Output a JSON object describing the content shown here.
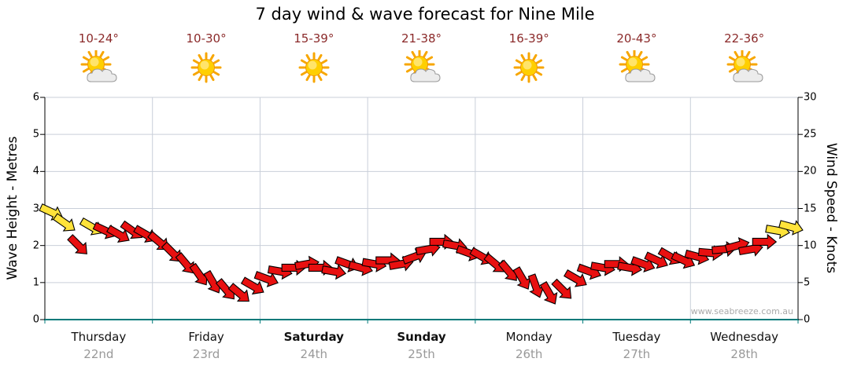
{
  "title": "7 day wind & wave forecast for Nine Mile",
  "watermark": "www.seabreeze.com.au",
  "colors": {
    "arrow_red": "#e81010",
    "arrow_yellow": "#ffe33a",
    "axis_bottom": "#007a7a",
    "grid": "#c9cfd9",
    "temp_text": "#8b2a2a",
    "date_text": "#999999",
    "watermark_text": "#aaaaaa",
    "sun": "#ffcf00",
    "sun_rays": "#f7a600",
    "cloud": "#ececec"
  },
  "days": [
    {
      "name": "Thursday",
      "date": "22nd",
      "temp": "10-24°",
      "icon": "sun-cloud",
      "bold": false
    },
    {
      "name": "Friday",
      "date": "23rd",
      "temp": "10-30°",
      "icon": "sun",
      "bold": false
    },
    {
      "name": "Saturday",
      "date": "24th",
      "temp": "15-39°",
      "icon": "sun",
      "bold": true
    },
    {
      "name": "Sunday",
      "date": "25th",
      "temp": "21-38°",
      "icon": "sun-cloud",
      "bold": true
    },
    {
      "name": "Monday",
      "date": "26th",
      "temp": "16-39°",
      "icon": "sun",
      "bold": false
    },
    {
      "name": "Tuesday",
      "date": "27th",
      "temp": "20-43°",
      "icon": "sun-cloud",
      "bold": false
    },
    {
      "name": "Wednesday",
      "date": "28th",
      "temp": "22-36°",
      "icon": "sun-cloud",
      "bold": false
    }
  ],
  "chart_data": {
    "type": "scatter",
    "marker": "wind-arrow",
    "title": "7 day wind & wave forecast for Nine Mile",
    "grid": true,
    "x_axis": {
      "categories": [
        "Thursday 22nd",
        "Friday 23rd",
        "Saturday 24th",
        "Sunday 25th",
        "Monday 26th",
        "Tuesday 27th",
        "Wednesday 28th"
      ],
      "points_per_day": 8
    },
    "y_left": {
      "label": "Wave Height - Metres",
      "range": [
        0,
        6
      ],
      "ticks": [
        0,
        1,
        2,
        3,
        4,
        5,
        6
      ]
    },
    "y_right": {
      "label": "Wind Speed - Knots",
      "range": [
        0,
        30
      ],
      "ticks": [
        0,
        5,
        10,
        15,
        20,
        25,
        30
      ]
    },
    "palette": {
      "red": "#e81010",
      "yellow": "#ffe33a"
    },
    "series": [
      {
        "name": "Wind speed (knots), 3-hourly",
        "knots": [
          14.5,
          13,
          10,
          12.5,
          12,
          11.5,
          12,
          11.5,
          10.5,
          9,
          7.5,
          6,
          5,
          4,
          3.5,
          4.5,
          5.5,
          6.5,
          7,
          7.5,
          7,
          6.5,
          7.5,
          7,
          7.5,
          8,
          7.5,
          8.5,
          9.5,
          10.5,
          10,
          9,
          8.5,
          7.5,
          6.5,
          5.5,
          4.5,
          3.5,
          4,
          5.5,
          6.5,
          7,
          7.5,
          7,
          7.5,
          8,
          8.5,
          8,
          8.5,
          9,
          9.5,
          10,
          9.5,
          10.5,
          12,
          12.5
        ],
        "direction_deg": [
          25,
          35,
          45,
          30,
          25,
          30,
          35,
          30,
          40,
          45,
          50,
          55,
          60,
          50,
          40,
          30,
          20,
          10,
          0,
          -10,
          0,
          10,
          20,
          15,
          10,
          0,
          -10,
          -20,
          -10,
          0,
          10,
          20,
          30,
          40,
          50,
          60,
          70,
          60,
          45,
          30,
          20,
          10,
          0,
          10,
          20,
          25,
          30,
          25,
          15,
          5,
          -5,
          -15,
          -10,
          0,
          10,
          15
        ],
        "color_key": [
          "yellow",
          "yellow",
          "red",
          "yellow",
          "red",
          "red",
          "red",
          "red",
          "red",
          "red",
          "red",
          "red",
          "red",
          "red",
          "red",
          "red",
          "red",
          "red",
          "red",
          "red",
          "red",
          "red",
          "red",
          "red",
          "red",
          "red",
          "red",
          "red",
          "red",
          "red",
          "red",
          "red",
          "red",
          "red",
          "red",
          "red",
          "red",
          "red",
          "red",
          "red",
          "red",
          "red",
          "red",
          "red",
          "red",
          "red",
          "red",
          "red",
          "red",
          "red",
          "red",
          "red",
          "red",
          "red",
          "yellow",
          "yellow"
        ]
      }
    ],
    "watermark": "www.seabreeze.com.au"
  }
}
